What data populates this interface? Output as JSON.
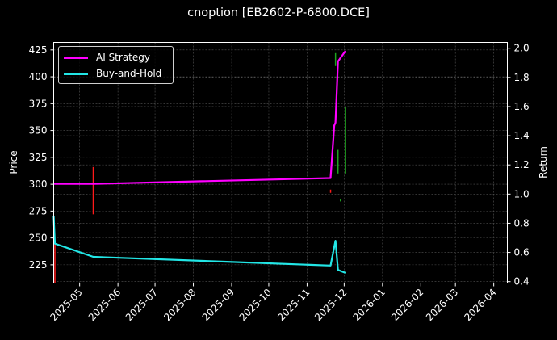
{
  "title": "cnoption [EB2602-P-6800.DCE]",
  "colors": {
    "background": "#000000",
    "ai_strategy": "#ff00ff",
    "buy_and_hold": "#22e6e6",
    "buy_signal": "#1fa31f",
    "sell_signal": "#ff1a1a",
    "grid": "#555555"
  },
  "legend": {
    "items": [
      {
        "label": "AI Strategy",
        "color": "#ff00ff"
      },
      {
        "label": "Buy-and-Hold",
        "color": "#22e6e6"
      }
    ]
  },
  "chart_data": {
    "type": "line",
    "title": "cnoption [EB2602-P-6800.DCE]",
    "xlabel": "",
    "ylabel": "Price",
    "ylabel_right": "Return",
    "x_ticks": [
      "2025-05",
      "2025-06",
      "2025-07",
      "2025-08",
      "2025-09",
      "2025-10",
      "2025-11",
      "2025-12",
      "2026-01",
      "2026-02",
      "2026-03",
      "2026-04"
    ],
    "y_ticks_left": [
      225,
      250,
      275,
      300,
      325,
      350,
      375,
      400,
      425
    ],
    "y_ticks_right": [
      0.4,
      0.6,
      0.8,
      1.0,
      1.2,
      1.4,
      1.6,
      1.8,
      2.0
    ],
    "ylim_left": [
      208,
      432
    ],
    "ylim_right": [
      0.39,
      2.04
    ],
    "xlim": [
      "2025-04-10",
      "2026-04-12"
    ],
    "grid": true,
    "legend_position": "upper left",
    "series": [
      {
        "name": "AI Strategy",
        "axis": "right",
        "x": [
          "2025-04-10",
          "2025-05-12",
          "2025-11-20",
          "2025-11-23",
          "2025-11-24",
          "2025-11-26",
          "2025-12-02"
        ],
        "values": [
          1.07,
          1.07,
          1.11,
          1.47,
          1.49,
          1.91,
          1.98
        ]
      },
      {
        "name": "Buy-and-Hold",
        "axis": "right",
        "x": [
          "2025-04-10",
          "2025-04-11",
          "2025-05-12",
          "2025-11-20",
          "2025-11-24",
          "2025-11-26",
          "2025-12-02"
        ],
        "values": [
          0.85,
          0.66,
          0.57,
          0.51,
          0.68,
          0.48,
          0.46
        ]
      }
    ],
    "signals": [
      {
        "type": "sell",
        "color": "#ff1a1a",
        "x": "2025-04-11",
        "price_range": [
          208,
          245
        ]
      },
      {
        "type": "sell",
        "color": "#ff1a1a",
        "x": "2025-05-12",
        "price_range": [
          272,
          316
        ]
      },
      {
        "type": "sell",
        "color": "#ff1a1a",
        "x": "2025-11-20",
        "price_range": [
          292,
          295
        ]
      },
      {
        "type": "buy",
        "color": "#1fa31f",
        "x": "2025-11-24",
        "price_range": [
          410,
          422
        ]
      },
      {
        "type": "buy",
        "color": "#1fa31f",
        "x": "2025-11-26",
        "price_range": [
          310,
          332
        ]
      },
      {
        "type": "buy",
        "color": "#1fa31f",
        "x": "2025-11-28",
        "price_range": [
          284,
          286
        ]
      },
      {
        "type": "buy",
        "color": "#1fa31f",
        "x": "2025-12-02",
        "price_range": [
          310,
          372
        ]
      }
    ]
  },
  "axes": {
    "left_label": "Price",
    "right_label": "Return"
  }
}
